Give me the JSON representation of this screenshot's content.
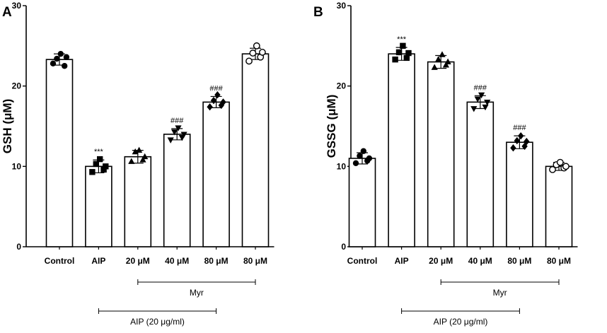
{
  "chart_data": [
    {
      "type": "bar",
      "panel": "A",
      "ylabel": "GSH  (μM)",
      "ylim": [
        0,
        30
      ],
      "yticks": [
        0,
        10,
        20,
        30
      ],
      "categories": [
        "Control",
        "AIP",
        "20 μM",
        "40 μM",
        "80 μM",
        "80 μM"
      ],
      "values": [
        23.3,
        10.0,
        11.2,
        14.0,
        18.0,
        24.0
      ],
      "errors": [
        0.7,
        0.8,
        0.8,
        0.7,
        0.7,
        0.7
      ],
      "points": [
        [
          22.8,
          23.4,
          24.0,
          22.5,
          23.6
        ],
        [
          9.3,
          10.3,
          10.9,
          9.6,
          10.0
        ],
        [
          10.6,
          11.8,
          12.0,
          10.8,
          11.2
        ],
        [
          13.3,
          14.3,
          14.8,
          13.6,
          14.0
        ],
        [
          17.4,
          18.2,
          18.9,
          17.6,
          18.0
        ],
        [
          23.1,
          24.1,
          25.0,
          23.6,
          24.2
        ]
      ],
      "markers": [
        "circle",
        "square",
        "triangle",
        "inv-triangle",
        "diamond",
        "open-circle"
      ],
      "annotations": [
        "",
        "***",
        "",
        "###",
        "###",
        ""
      ],
      "brackets": [
        {
          "label": "Myr",
          "from": 2,
          "to": 5
        },
        {
          "label": "AIP (20 μg/ml)",
          "from": 1,
          "to": 4
        }
      ]
    },
    {
      "type": "bar",
      "panel": "B",
      "ylabel": "GSSG  (μM)",
      "ylim": [
        0,
        30
      ],
      "yticks": [
        0,
        10,
        20,
        30
      ],
      "categories": [
        "Control",
        "AIP",
        "20 μM",
        "40 μM",
        "80 μM",
        "80 μM"
      ],
      "values": [
        11.0,
        24.0,
        23.0,
        18.0,
        13.0,
        10.0
      ],
      "errors": [
        0.7,
        0.8,
        0.8,
        0.8,
        0.8,
        0.5
      ],
      "points": [
        [
          10.4,
          11.3,
          11.9,
          10.7,
          11.0
        ],
        [
          23.3,
          24.2,
          25.0,
          23.5,
          24.1
        ],
        [
          22.3,
          23.3,
          23.9,
          22.6,
          23.0
        ],
        [
          17.2,
          18.4,
          18.9,
          17.4,
          18.0
        ],
        [
          12.3,
          13.2,
          13.8,
          12.5,
          13.1
        ],
        [
          9.6,
          10.2,
          10.5,
          9.8,
          10.0
        ]
      ],
      "markers": [
        "circle",
        "square",
        "triangle",
        "inv-triangle",
        "diamond",
        "open-circle"
      ],
      "annotations": [
        "",
        "***",
        "",
        "###",
        "###",
        ""
      ],
      "brackets": [
        {
          "label": "Myr",
          "from": 2,
          "to": 5
        },
        {
          "label": "AIP (20 μg/ml)",
          "from": 1,
          "to": 4
        }
      ]
    }
  ]
}
